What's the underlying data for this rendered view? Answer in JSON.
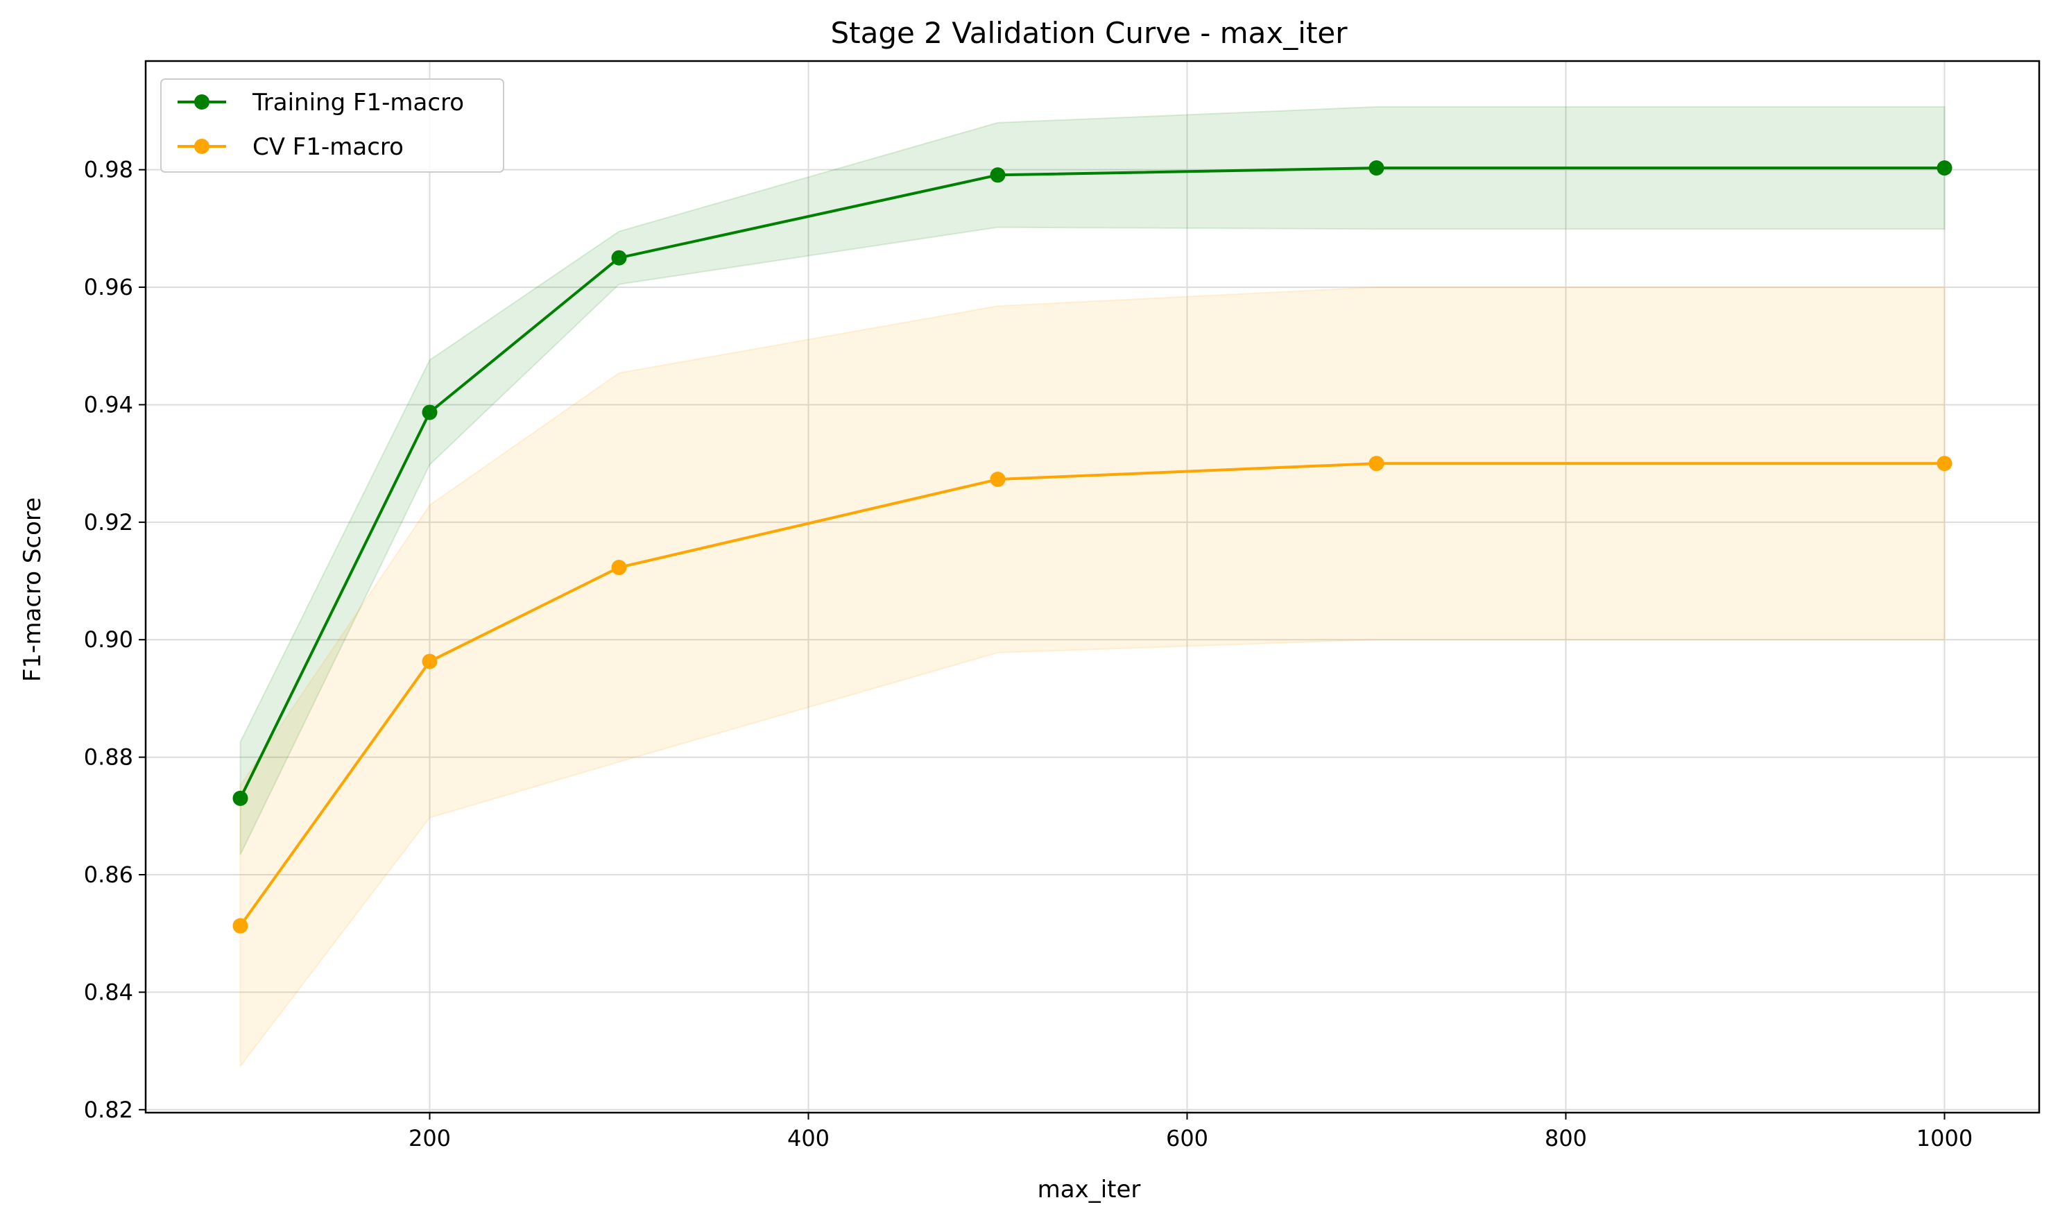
{
  "chart_data": {
    "type": "line",
    "title": "Stage 2 Validation Curve - max_iter",
    "xlabel": "max_iter",
    "ylabel": "F1-macro Score",
    "xlim": [
      50,
      1050
    ],
    "ylim": [
      0.8195,
      0.9985
    ],
    "xticks": [
      200,
      400,
      600,
      800,
      1000
    ],
    "yticks": [
      0.82,
      0.84,
      0.86,
      0.88,
      0.9,
      0.92,
      0.94,
      0.96,
      0.98
    ],
    "grid": true,
    "legend_position": "top-left",
    "x": [
      100,
      200,
      300,
      500,
      700,
      1000
    ],
    "series": [
      {
        "name": "Training F1-macro",
        "color": "#008000",
        "values": [
          0.873,
          0.9387,
          0.965,
          0.9791,
          0.9803,
          0.9803
        ],
        "band_lower": [
          0.8634,
          0.9298,
          0.9605,
          0.9702,
          0.9699,
          0.9699
        ],
        "band_upper": [
          0.8826,
          0.9476,
          0.9695,
          0.988,
          0.9907,
          0.9907
        ]
      },
      {
        "name": "CV F1-macro",
        "color": "#FFA500",
        "values": [
          0.8513,
          0.8963,
          0.9123,
          0.9273,
          0.93,
          0.93
        ],
        "band_lower": [
          0.8274,
          0.8697,
          0.8792,
          0.8978,
          0.9,
          0.9
        ],
        "band_upper": [
          0.8752,
          0.9229,
          0.9454,
          0.9568,
          0.96,
          0.96
        ]
      }
    ]
  }
}
